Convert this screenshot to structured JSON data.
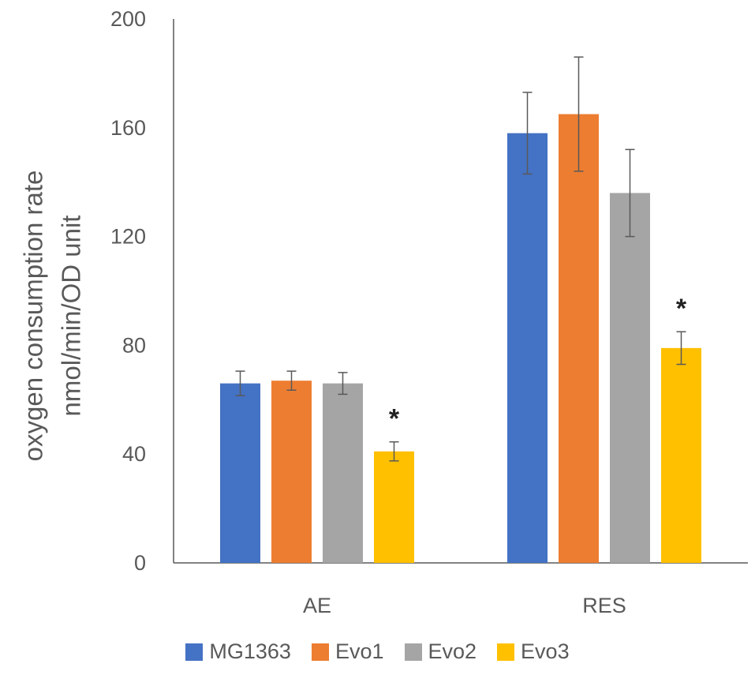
{
  "chart_data": {
    "type": "bar",
    "title": "",
    "xlabel": "",
    "ylabel_lines": [
      "oxygen consumption rate",
      "nmol/min/OD unit"
    ],
    "ylim": [
      0,
      200
    ],
    "yticks": [
      0,
      40,
      80,
      120,
      160,
      200
    ],
    "categories": [
      "AE",
      "RES"
    ],
    "series": [
      {
        "name": "MG1363",
        "color": "#4472C4",
        "values": [
          66,
          158
        ],
        "errors": [
          4.5,
          15
        ]
      },
      {
        "name": "Evo1",
        "color": "#ED7D31",
        "values": [
          67,
          165
        ],
        "errors": [
          3.5,
          21
        ]
      },
      {
        "name": "Evo2",
        "color": "#A5A5A5",
        "values": [
          66,
          136
        ],
        "errors": [
          4,
          16
        ]
      },
      {
        "name": "Evo3",
        "color": "#FFC000",
        "values": [
          41,
          79
        ],
        "errors": [
          3.5,
          6
        ]
      }
    ],
    "annotations": [
      {
        "category": "AE",
        "series": "Evo3",
        "text": "*"
      },
      {
        "category": "RES",
        "series": "Evo3",
        "text": "*"
      }
    ]
  }
}
